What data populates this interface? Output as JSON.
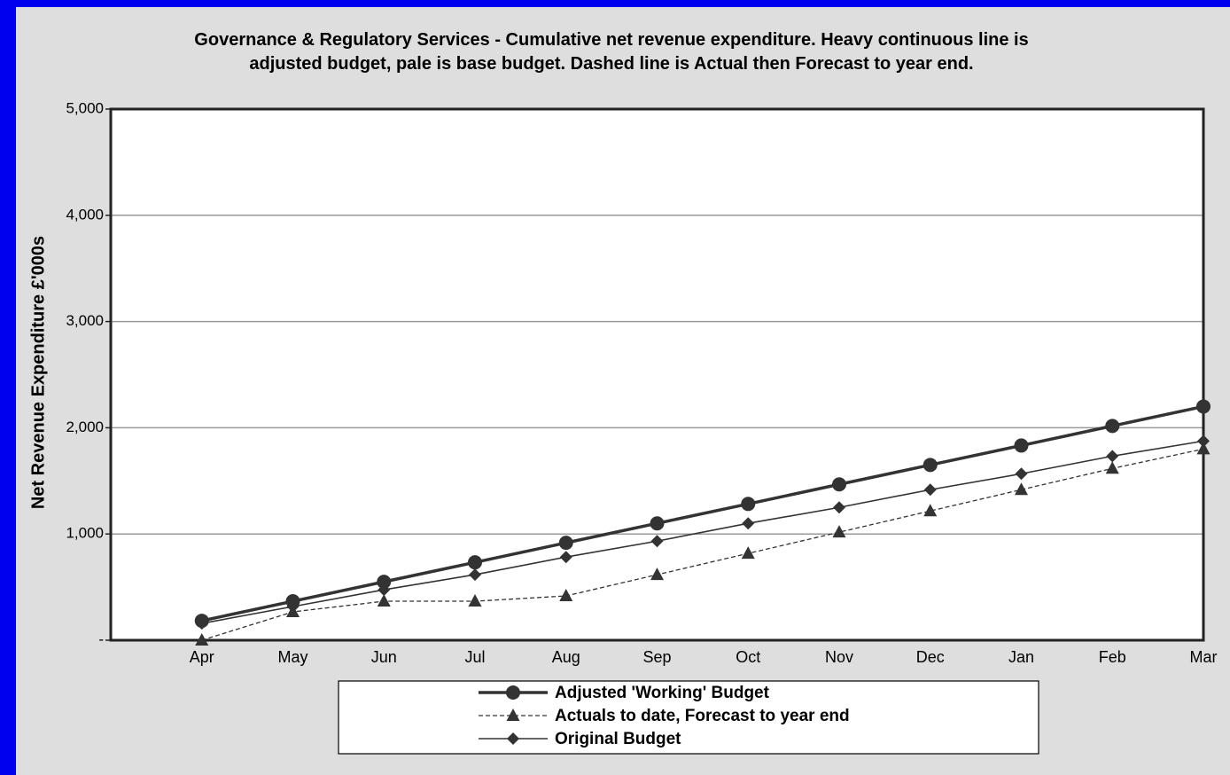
{
  "chart_data": {
    "type": "line",
    "title": "Governance & Regulatory Services - Cumulative net revenue expenditure. Heavy continuous line is adjusted budget, pale is base budget. Dashed line is Actual then Forecast to year end.",
    "y_label": "Net Revenue Expenditure £'000s",
    "categories": [
      "Apr",
      "May",
      "Jun",
      "Jul",
      "Aug",
      "Sep",
      "Oct",
      "Nov",
      "Dec",
      "Jan",
      "Feb",
      "Mar"
    ],
    "series": [
      {
        "name": "Adjusted 'Working' Budget",
        "color": "#333333",
        "line_width": 3.5,
        "dash": "none",
        "marker": "circle",
        "values": [
          183,
          367,
          550,
          733,
          917,
          1100,
          1283,
          1467,
          1650,
          1833,
          2017,
          2200
        ]
      },
      {
        "name": "Actuals to date, Forecast to year end",
        "color": "#333333",
        "line_width": 1.3,
        "dash": "5,3",
        "marker": "triangle",
        "values": [
          0,
          267,
          367,
          367,
          417,
          617,
          817,
          1017,
          1217,
          1417,
          1617,
          1800
        ]
      },
      {
        "name": "Original Budget",
        "color": "#333333",
        "line_width": 1.6,
        "dash": "none",
        "marker": "diamond",
        "values": [
          158,
          317,
          475,
          617,
          783,
          933,
          1100,
          1250,
          1417,
          1567,
          1733,
          1875
        ]
      }
    ],
    "ylim": [
      0,
      5000
    ],
    "yticks": [
      {
        "value": 0,
        "label": "-"
      },
      {
        "value": 1000,
        "label": "1,000"
      },
      {
        "value": 2000,
        "label": "2,000"
      },
      {
        "value": 3000,
        "label": "3,000"
      },
      {
        "value": 4000,
        "label": "4,000"
      },
      {
        "value": 5000,
        "label": "5,000"
      }
    ],
    "grid": true
  }
}
